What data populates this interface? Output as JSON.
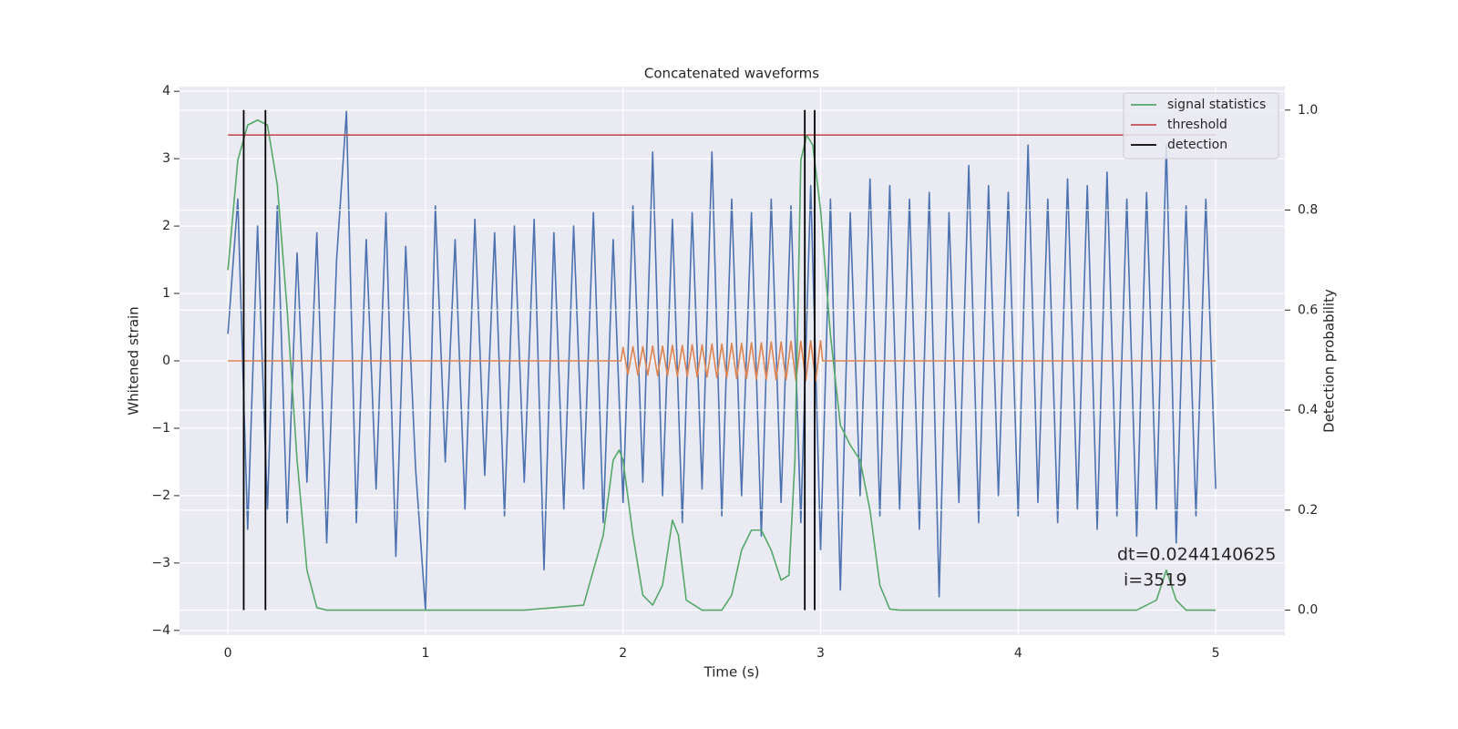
{
  "chart_data": {
    "type": "line",
    "title": "Concatenated waveforms",
    "xlabel": "Time (s)",
    "ylabel": "Whitened strain",
    "y2label": "Detection probability",
    "xlim": [
      -0.245,
      5.35
    ],
    "xticks": [
      0,
      1,
      2,
      3,
      4,
      5
    ],
    "ylim": [
      -4.07,
      4.07
    ],
    "yticks": [
      {
        "value": -4,
        "label": "−4"
      },
      {
        "value": -3,
        "label": "−3"
      },
      {
        "value": -2,
        "label": "−2"
      },
      {
        "value": -1,
        "label": "−1"
      },
      0,
      1,
      2,
      3,
      4
    ],
    "y2lim": [
      -0.05,
      1.047
    ],
    "y2ticks": [
      {
        "value": 0,
        "label": "0.0"
      },
      {
        "value": 0.2,
        "label": "0.2"
      },
      {
        "value": 0.4,
        "label": "0.4"
      },
      {
        "value": 0.6,
        "label": "0.6"
      },
      {
        "value": 0.8,
        "label": "0.8"
      },
      {
        "value": 1,
        "label": "1.0"
      }
    ],
    "grid": true,
    "legend": "upper right",
    "series": [
      {
        "color": "#4c72b0",
        "x": [
          0,
          0.05,
          0.1,
          0.15,
          0.2,
          0.25,
          0.3,
          0.35,
          0.4,
          0.45,
          0.5,
          0.55,
          0.6,
          0.65,
          0.7,
          0.75,
          0.8,
          0.85,
          0.9,
          0.95,
          1,
          1.05,
          1.1,
          1.15,
          1.2,
          1.25,
          1.3,
          1.35,
          1.4,
          1.45,
          1.5,
          1.55,
          1.6,
          1.65,
          1.7,
          1.75,
          1.8,
          1.85,
          1.9,
          1.95,
          2,
          2.05,
          2.1,
          2.15,
          2.2,
          2.25,
          2.3,
          2.35,
          2.4,
          2.45,
          2.5,
          2.55,
          2.6,
          2.65,
          2.7,
          2.75,
          2.8,
          2.85,
          2.9,
          2.95,
          3,
          3.05,
          3.1,
          3.15,
          3.2,
          3.25,
          3.3,
          3.35,
          3.4,
          3.45,
          3.5,
          3.55,
          3.6,
          3.65,
          3.7,
          3.75,
          3.8,
          3.85,
          3.9,
          3.95,
          4,
          4.05,
          4.1,
          4.15,
          4.2,
          4.25,
          4.3,
          4.35,
          4.4,
          4.45,
          4.5,
          4.55,
          4.6,
          4.65,
          4.7,
          4.75,
          4.8,
          4.85,
          4.9,
          4.95,
          5
        ],
        "values": [
          0.4,
          2.4,
          -2.5,
          2.0,
          -2.2,
          2.3,
          -2.4,
          1.6,
          -1.8,
          1.9,
          -2.7,
          1.5,
          3.7,
          -2.4,
          1.8,
          -1.9,
          2.2,
          -2.9,
          1.7,
          -1.6,
          -3.7,
          2.3,
          -1.5,
          1.8,
          -2.2,
          2.1,
          -1.7,
          1.9,
          -2.3,
          2.0,
          -1.8,
          2.1,
          -3.1,
          1.9,
          -2.2,
          2.0,
          -1.9,
          2.2,
          -2.4,
          1.8,
          -2.1,
          2.3,
          -1.8,
          3.1,
          -2.0,
          2.1,
          -2.4,
          2.2,
          -1.9,
          3.1,
          -2.3,
          2.4,
          -2.0,
          2.2,
          -2.6,
          2.4,
          -2.1,
          2.3,
          -2.4,
          2.6,
          -2.8,
          2.4,
          -3.4,
          2.2,
          -2.0,
          2.7,
          -2.3,
          2.6,
          -2.2,
          2.4,
          -2.5,
          2.5,
          -3.5,
          2.2,
          -2.1,
          2.9,
          -2.4,
          2.6,
          -2.0,
          2.5,
          -2.3,
          3.2,
          -2.1,
          2.4,
          -2.4,
          2.7,
          -2.2,
          2.6,
          -2.5,
          2.8,
          -2.3,
          2.4,
          -2.6,
          2.5,
          -2.2,
          3.2,
          -2.7,
          2.3,
          -2.3,
          2.4,
          -1.9
        ]
      },
      {
        "color": "#dd8452",
        "x": [
          0,
          1.99,
          2,
          2.025,
          2.05,
          2.075,
          2.1,
          2.125,
          2.15,
          2.175,
          2.2,
          2.225,
          2.25,
          2.275,
          2.3,
          2.325,
          2.35,
          2.375,
          2.4,
          2.425,
          2.45,
          2.475,
          2.5,
          2.525,
          2.55,
          2.575,
          2.6,
          2.625,
          2.65,
          2.675,
          2.7,
          2.725,
          2.75,
          2.775,
          2.8,
          2.825,
          2.85,
          2.875,
          2.9,
          2.925,
          2.95,
          2.975,
          3,
          3.01,
          5
        ],
        "values": [
          0,
          0,
          0.2,
          -0.2,
          0.21,
          -0.21,
          0.21,
          -0.21,
          0.22,
          -0.22,
          0.22,
          -0.22,
          0.23,
          -0.23,
          0.23,
          -0.23,
          0.24,
          -0.24,
          0.24,
          -0.24,
          0.25,
          -0.25,
          0.25,
          -0.25,
          0.26,
          -0.26,
          0.26,
          -0.26,
          0.27,
          -0.27,
          0.27,
          -0.27,
          0.28,
          -0.28,
          0.28,
          -0.28,
          0.29,
          -0.29,
          0.29,
          -0.29,
          0.3,
          -0.3,
          0.3,
          0,
          0
        ]
      },
      {
        "name": "signal statistics",
        "color": "#55a868",
        "axis": "y2",
        "x": [
          0,
          0.05,
          0.1,
          0.15,
          0.2,
          0.25,
          0.3,
          0.35,
          0.4,
          0.45,
          0.5,
          1.5,
          1.8,
          1.9,
          1.95,
          1.98,
          2,
          2.05,
          2.1,
          2.15,
          2.2,
          2.25,
          2.28,
          2.32,
          2.4,
          2.5,
          2.55,
          2.6,
          2.65,
          2.7,
          2.75,
          2.8,
          2.84,
          2.87,
          2.9,
          2.93,
          2.96,
          3,
          3.05,
          3.1,
          3.15,
          3.2,
          3.25,
          3.3,
          3.35,
          3.4,
          4.6,
          4.7,
          4.75,
          4.8,
          4.85,
          5
        ],
        "values": [
          0.68,
          0.9,
          0.97,
          0.98,
          0.97,
          0.85,
          0.6,
          0.3,
          0.08,
          0.005,
          0,
          0,
          0.01,
          0.15,
          0.3,
          0.32,
          0.3,
          0.15,
          0.03,
          0.01,
          0.05,
          0.18,
          0.15,
          0.02,
          0,
          0,
          0.03,
          0.12,
          0.16,
          0.16,
          0.12,
          0.06,
          0.07,
          0.3,
          0.9,
          0.95,
          0.93,
          0.8,
          0.55,
          0.37,
          0.33,
          0.3,
          0.2,
          0.05,
          0.002,
          0,
          0,
          0.02,
          0.08,
          0.02,
          0,
          0
        ]
      },
      {
        "name": "threshold",
        "color": "#c44e52",
        "axis": "y2",
        "x": [
          0,
          5
        ],
        "values": [
          0.95,
          0.95
        ]
      }
    ],
    "vlines": {
      "name": "detection",
      "color": "#000000",
      "axis": "y2",
      "x": [
        0.08,
        0.19,
        2.92,
        2.97
      ],
      "ymin": 0,
      "ymax": 1
    },
    "annotation": [
      "dt=0.0244140625",
      "i=3519"
    ]
  }
}
